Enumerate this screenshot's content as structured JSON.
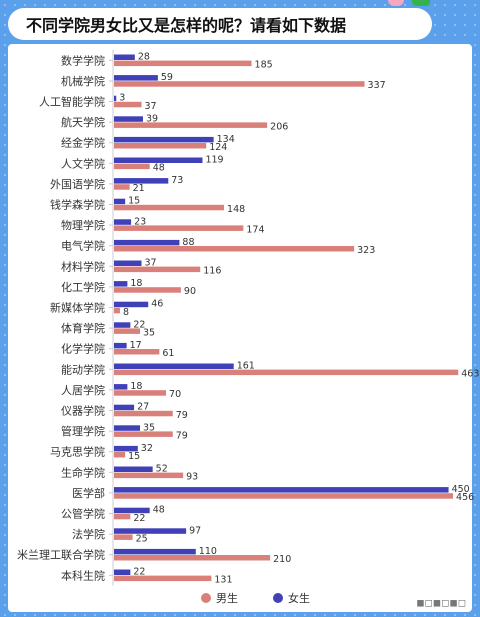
{
  "title": "不同学院男女比又是怎样的呢？请看如下数据",
  "chart_data": {
    "type": "bar",
    "orientation": "horizontal",
    "categories": [
      "数学学院",
      "机械学院",
      "人工智能学院",
      "航天学院",
      "经金学院",
      "人文学院",
      "外国语学院",
      "钱学森学院",
      "物理学院",
      "电气学院",
      "材料学院",
      "化工学院",
      "新媒体学院",
      "体育学院",
      "化学学院",
      "能动学院",
      "人居学院",
      "仪器学院",
      "管理学院",
      "马克思学院",
      "生命学院",
      "医学部",
      "公管学院",
      "法学院",
      "米兰理工联合学院",
      "本科生院"
    ],
    "series": [
      {
        "name": "女生",
        "color": "#4040b8",
        "values": [
          28,
          59,
          3,
          39,
          134,
          119,
          73,
          15,
          23,
          88,
          37,
          18,
          46,
          22,
          17,
          161,
          18,
          27,
          35,
          32,
          52,
          450,
          48,
          97,
          110,
          22
        ]
      },
      {
        "name": "男生",
        "color": "#d9807a",
        "values": [
          185,
          337,
          37,
          206,
          124,
          48,
          21,
          148,
          174,
          323,
          116,
          90,
          8,
          35,
          61,
          463,
          70,
          79,
          79,
          15,
          93,
          456,
          22,
          25,
          210,
          131
        ]
      }
    ],
    "legend": {
      "position": "bottom",
      "items": [
        {
          "name": "男生",
          "color": "#d9807a"
        },
        {
          "name": "女生",
          "color": "#4040b8"
        }
      ]
    },
    "xlim": [
      0,
      500
    ]
  }
}
